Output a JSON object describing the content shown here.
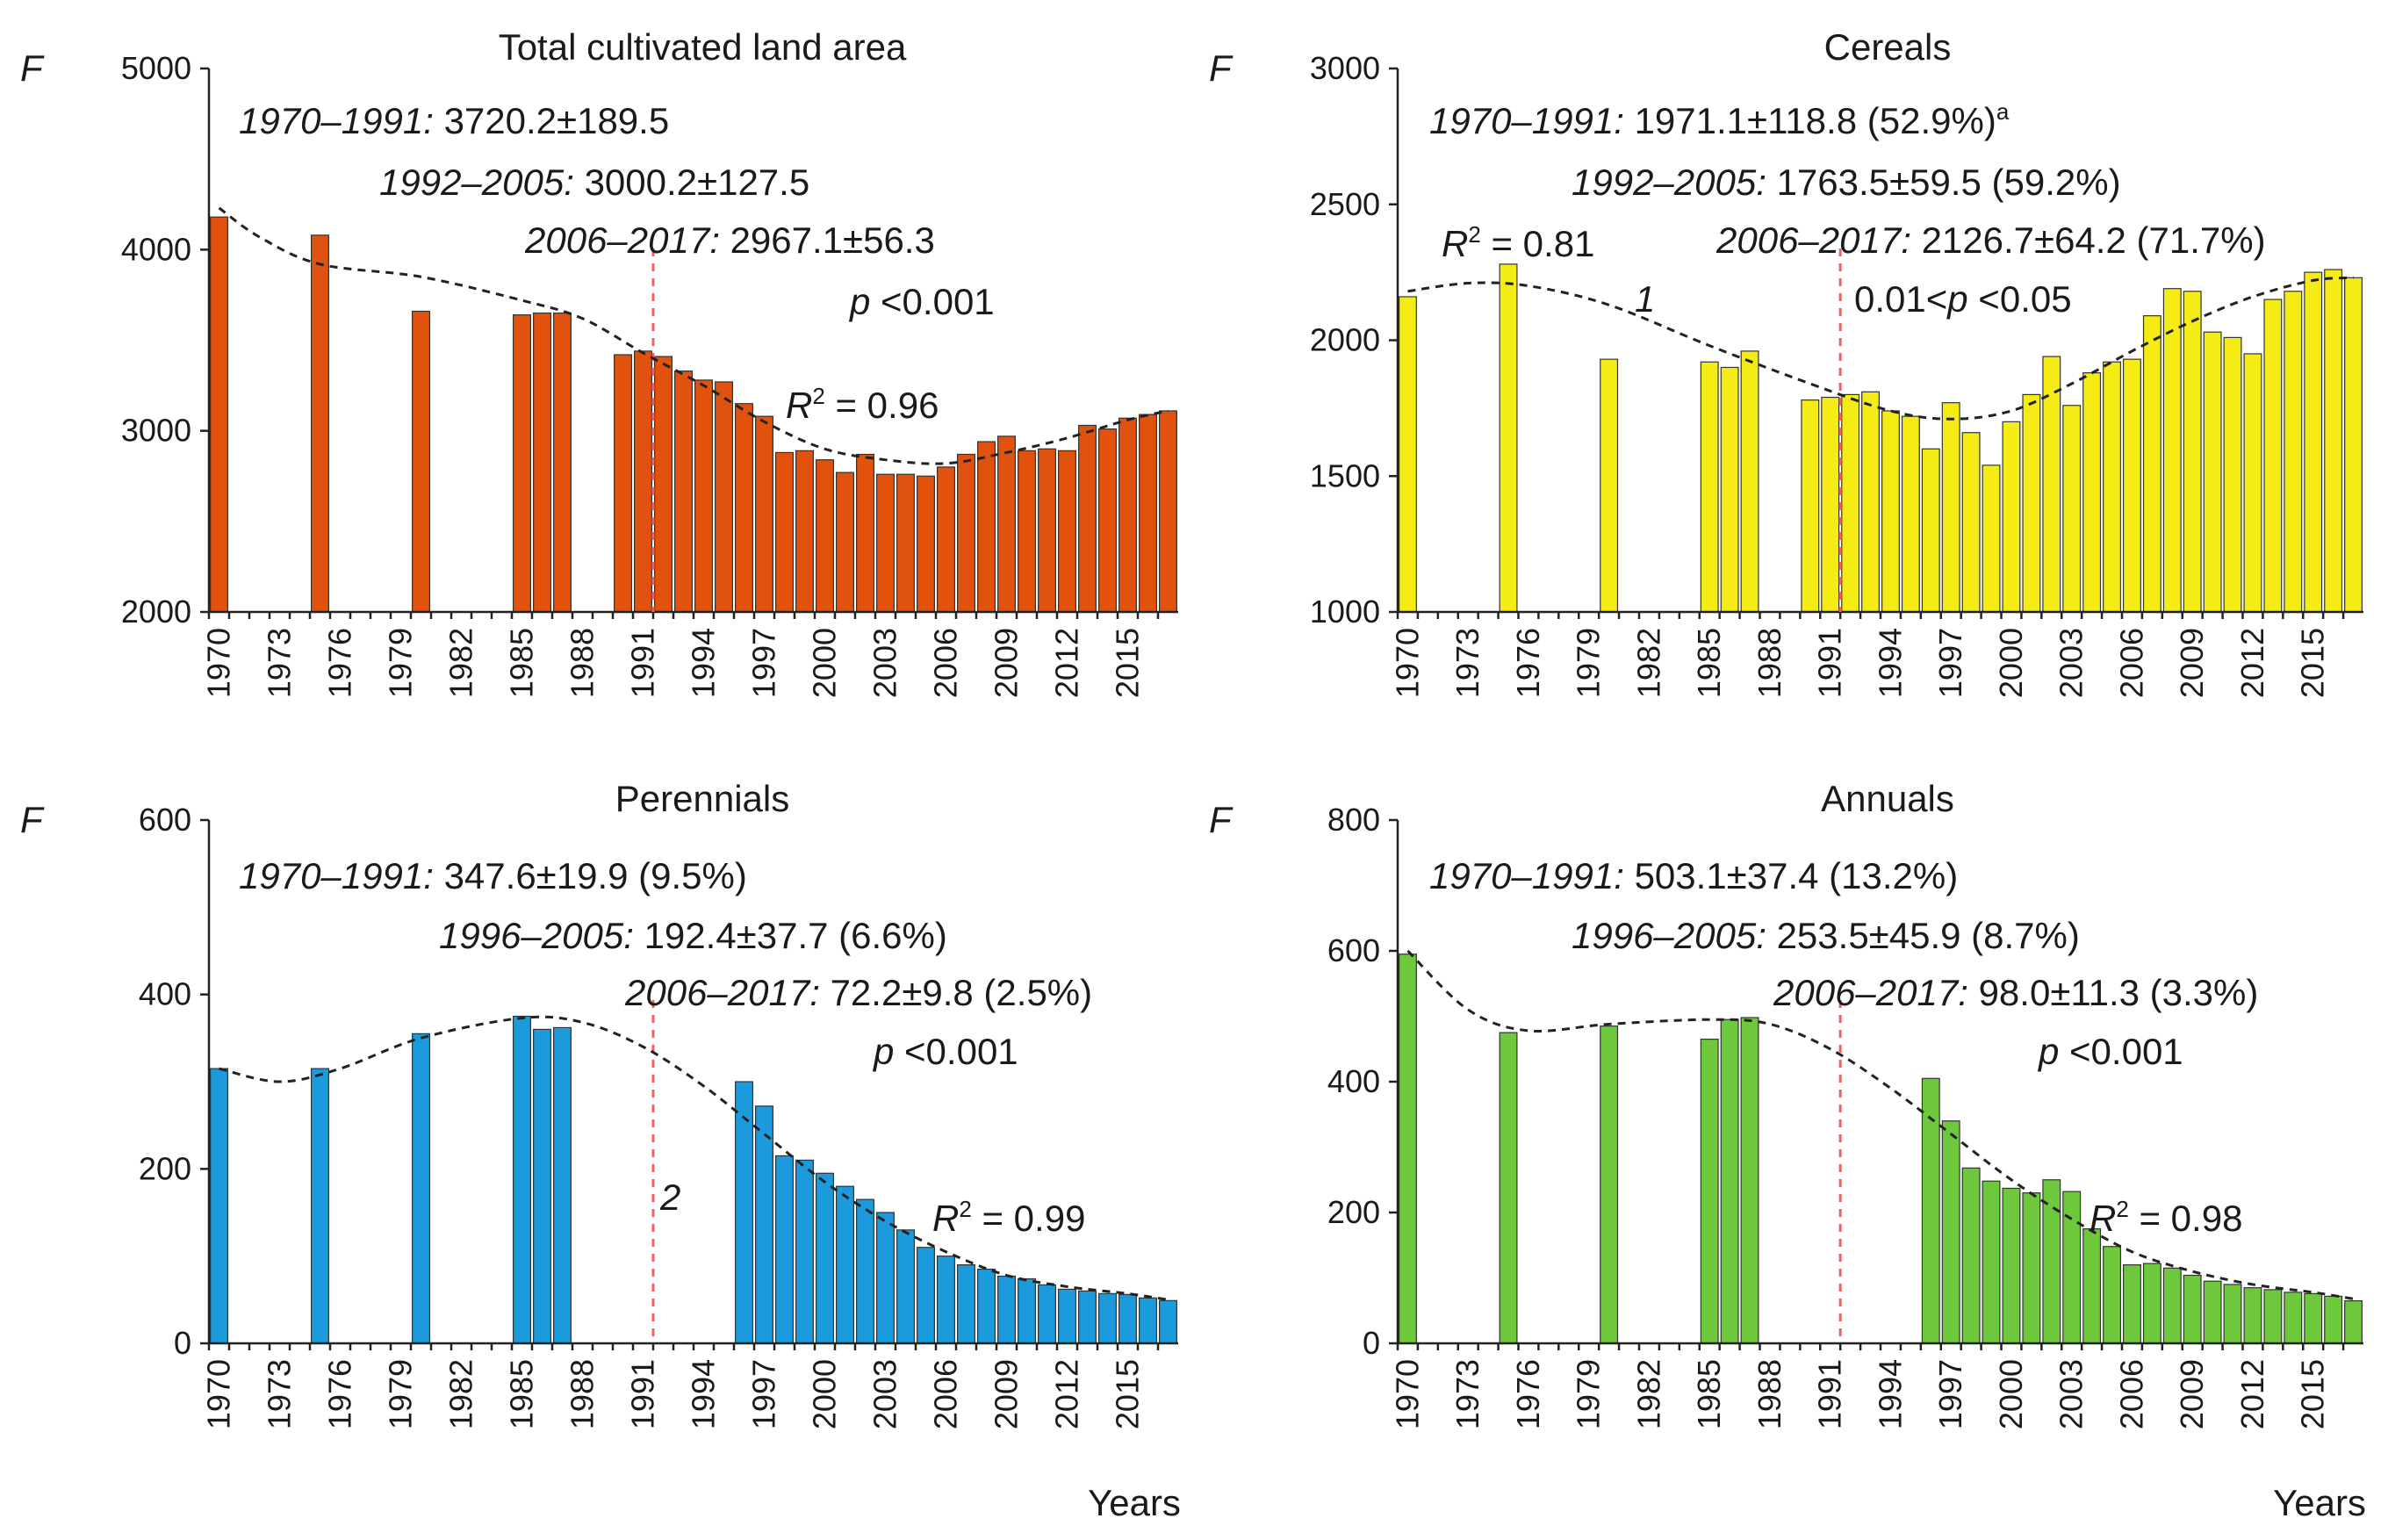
{
  "axis_common": {
    "xlabel": "Years",
    "ylabel_symbol": "F",
    "xtick_labels": [
      "1970",
      "1973",
      "1976",
      "1979",
      "1982",
      "1985",
      "1988",
      "1991",
      "1994",
      "1997",
      "2000",
      "2003",
      "2006",
      "2009",
      "2012",
      "2015"
    ]
  },
  "chart_data": [
    {
      "type": "bar",
      "title": "Total cultivated land area",
      "ylabel": "F",
      "xlabel": "",
      "ylim": [
        2000,
        5000
      ],
      "yticks": [
        "2000",
        "3000",
        "4000",
        "5000"
      ],
      "color": "#e2520f",
      "divider_year": 1992,
      "trend_label": "",
      "years": [
        1970,
        1975,
        1980,
        1985,
        1986,
        1987,
        1990,
        1991,
        1992,
        1993,
        1994,
        1995,
        1996,
        1997,
        1998,
        1999,
        2000,
        2001,
        2002,
        2003,
        2004,
        2005,
        2006,
        2007,
        2008,
        2009,
        2010,
        2011,
        2012,
        2013,
        2014,
        2015,
        2016,
        2017
      ],
      "values": [
        4180,
        4080,
        3660,
        3640,
        3650,
        3650,
        3420,
        3440,
        3410,
        3330,
        3280,
        3270,
        3150,
        3080,
        2880,
        2890,
        2840,
        2770,
        2870,
        2760,
        2760,
        2750,
        2800,
        2870,
        2940,
        2970,
        2890,
        2900,
        2890,
        3030,
        3010,
        3070,
        3090,
        3110
      ],
      "trend": [
        [
          1970,
          4230
        ],
        [
          1972,
          4070
        ],
        [
          1975,
          3920
        ],
        [
          1980,
          3850
        ],
        [
          1985,
          3720
        ],
        [
          1988,
          3620
        ],
        [
          1991,
          3430
        ],
        [
          1994,
          3250
        ],
        [
          1997,
          3050
        ],
        [
          2000,
          2900
        ],
        [
          2003,
          2840
        ],
        [
          2006,
          2820
        ],
        [
          2009,
          2880
        ],
        [
          2012,
          2960
        ],
        [
          2015,
          3060
        ],
        [
          2017,
          3110
        ]
      ],
      "annotations": [
        {
          "period": "1970–1991:",
          "text": " 3720.2±189.5"
        },
        {
          "period": "1992–2005:",
          "text": " 3000.2±127.5"
        },
        {
          "period": "2006–2017:",
          "text": " 2967.1±56.3"
        },
        {
          "p_sym": "p",
          "p_text": " <0.001"
        },
        {
          "r_sym": "R",
          "r_sup": "2",
          "r_text": " = 0.96"
        }
      ],
      "show_xlabel": false
    },
    {
      "type": "bar",
      "title": "Cereals",
      "ylabel": "F",
      "xlabel": "",
      "ylim": [
        1000,
        3000
      ],
      "yticks": [
        "1000",
        "1500",
        "2000",
        "2500",
        "3000"
      ],
      "color": "#f4ec14",
      "divider_year": 1992,
      "trend_label": "1",
      "years": [
        1970,
        1975,
        1980,
        1985,
        1986,
        1987,
        1990,
        1991,
        1992,
        1993,
        1994,
        1995,
        1996,
        1997,
        1998,
        1999,
        2000,
        2001,
        2002,
        2003,
        2004,
        2005,
        2006,
        2007,
        2008,
        2009,
        2010,
        2011,
        2012,
        2013,
        2014,
        2015,
        2016,
        2017
      ],
      "values": [
        2160,
        2280,
        1930,
        1920,
        1900,
        1960,
        1780,
        1790,
        1800,
        1810,
        1740,
        1720,
        1600,
        1770,
        1660,
        1540,
        1700,
        1800,
        1940,
        1760,
        1880,
        1920,
        1930,
        2090,
        2190,
        2180,
        2030,
        2010,
        1950,
        2150,
        2180,
        2250,
        2260,
        2230
      ],
      "trend": [
        [
          1970,
          2180
        ],
        [
          1973,
          2210
        ],
        [
          1976,
          2200
        ],
        [
          1980,
          2130
        ],
        [
          1985,
          1980
        ],
        [
          1990,
          1840
        ],
        [
          1994,
          1740
        ],
        [
          1997,
          1710
        ],
        [
          2000,
          1740
        ],
        [
          2003,
          1840
        ],
        [
          2006,
          1960
        ],
        [
          2009,
          2070
        ],
        [
          2012,
          2160
        ],
        [
          2015,
          2220
        ],
        [
          2017,
          2230
        ]
      ],
      "annotations": [
        {
          "period": "1970–1991:",
          "text": " 1971.1±118.8 (52.9%)",
          "sup": "a"
        },
        {
          "period": "1992–2005:",
          "text": " 1763.5±59.5 (59.2%)"
        },
        {
          "period": "2006–2017:",
          "text": " 2126.7±64.2 (71.7%)"
        },
        {
          "p_pre": "0.01<",
          "p_sym": "p",
          "p_text": " <0.05"
        },
        {
          "r_sym": "R",
          "r_sup": "2",
          "r_text": " = 0.81"
        }
      ],
      "show_xlabel": false
    },
    {
      "type": "bar",
      "title": "Perennials",
      "ylabel": "F",
      "xlabel": "Years",
      "ylim": [
        0,
        600
      ],
      "yticks": [
        "0",
        "200",
        "400",
        "600"
      ],
      "color": "#1b9bdb",
      "divider_year": 1992,
      "trend_label": "2",
      "years": [
        1970,
        1975,
        1980,
        1985,
        1986,
        1987,
        1996,
        1997,
        1998,
        1999,
        2000,
        2001,
        2002,
        2003,
        2004,
        2005,
        2006,
        2007,
        2008,
        2009,
        2010,
        2011,
        2012,
        2013,
        2014,
        2015,
        2016,
        2017
      ],
      "values": [
        315,
        315,
        355,
        375,
        360,
        362,
        300,
        272,
        215,
        210,
        195,
        180,
        165,
        150,
        130,
        110,
        100,
        90,
        85,
        77,
        74,
        67,
        62,
        60,
        57,
        56,
        52,
        49
      ],
      "trend": [
        [
          1970,
          315
        ],
        [
          1973,
          300
        ],
        [
          1976,
          315
        ],
        [
          1980,
          350
        ],
        [
          1985,
          373
        ],
        [
          1988,
          368
        ],
        [
          1991,
          340
        ],
        [
          1994,
          295
        ],
        [
          1997,
          240
        ],
        [
          2000,
          185
        ],
        [
          2003,
          140
        ],
        [
          2006,
          105
        ],
        [
          2009,
          78
        ],
        [
          2012,
          65
        ],
        [
          2015,
          57
        ],
        [
          2017,
          50
        ]
      ],
      "annotations": [
        {
          "period": "1970–1991:",
          "text": " 347.6±19.9 (9.5%)"
        },
        {
          "period": "1996–2005:",
          "text": " 192.4±37.7 (6.6%)"
        },
        {
          "period": "2006–2017:",
          "text": " 72.2±9.8 (2.5%)"
        },
        {
          "p_sym": "p",
          "p_text": " <0.001"
        },
        {
          "r_sym": "R",
          "r_sup": "2",
          "r_text": " = 0.99"
        }
      ],
      "show_xlabel": true
    },
    {
      "type": "bar",
      "title": "Annuals",
      "ylabel": "F",
      "xlabel": "Years",
      "ylim": [
        0,
        800
      ],
      "yticks": [
        "0",
        "200",
        "400",
        "600",
        "800"
      ],
      "color": "#6ec83c",
      "divider_year": 1992,
      "trend_label": "",
      "years": [
        1970,
        1975,
        1980,
        1985,
        1986,
        1987,
        1996,
        1997,
        1998,
        1999,
        2000,
        2001,
        2002,
        2003,
        2004,
        2005,
        2006,
        2007,
        2008,
        2009,
        2010,
        2011,
        2012,
        2013,
        2014,
        2015,
        2016,
        2017
      ],
      "values": [
        595,
        475,
        485,
        465,
        495,
        498,
        405,
        340,
        268,
        248,
        237,
        230,
        250,
        232,
        175,
        148,
        120,
        122,
        115,
        104,
        95,
        90,
        85,
        82,
        78,
        76,
        72,
        65
      ],
      "trend": [
        [
          1970,
          600
        ],
        [
          1973,
          510
        ],
        [
          1976,
          478
        ],
        [
          1980,
          488
        ],
        [
          1985,
          495
        ],
        [
          1988,
          488
        ],
        [
          1991,
          450
        ],
        [
          1994,
          390
        ],
        [
          1997,
          320
        ],
        [
          2000,
          250
        ],
        [
          2003,
          190
        ],
        [
          2006,
          140
        ],
        [
          2009,
          110
        ],
        [
          2012,
          90
        ],
        [
          2015,
          78
        ],
        [
          2017,
          68
        ]
      ],
      "annotations": [
        {
          "period": "1970–1991:",
          "text": " 503.1±37.4 (13.2%)"
        },
        {
          "period": "1996–2005:",
          "text": " 253.5±45.9 (8.7%)"
        },
        {
          "period": "2006–2017:",
          "text": " 98.0±11.3 (3.3%)"
        },
        {
          "p_sym": "p",
          "p_text": " <0.001"
        },
        {
          "r_sym": "R",
          "r_sup": "2",
          "r_text": " = 0.98"
        }
      ],
      "show_xlabel": true
    }
  ]
}
